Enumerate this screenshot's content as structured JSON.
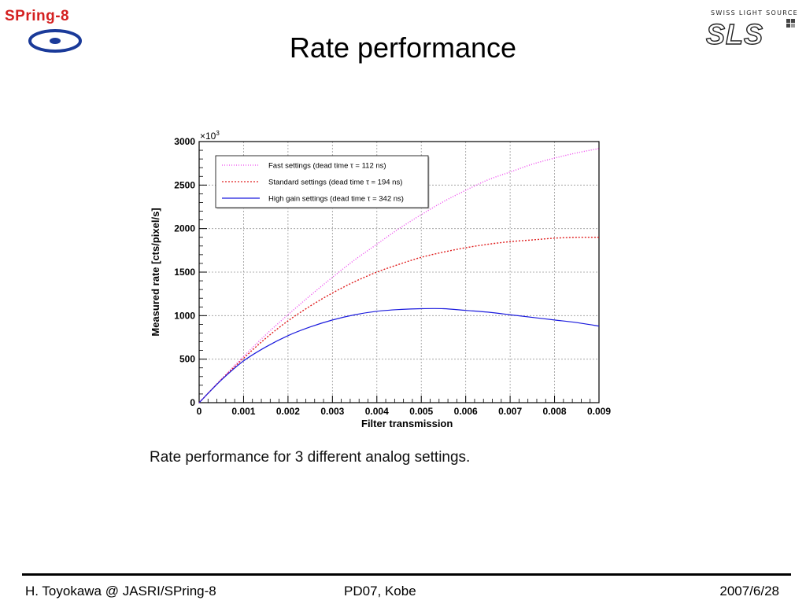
{
  "header": {
    "title": "Rate performance",
    "logo_left_text": "SPring-8",
    "logo_right_top": "SWISS LIGHT SOURCE",
    "logo_right_mark": "SLS"
  },
  "caption": "Rate performance for 3 different analog settings.",
  "footer": {
    "left": "H. Toyokawa @ JASRI/SPring-8",
    "center": "PD07, Kobe",
    "right": "2007/6/28"
  },
  "chart_data": {
    "type": "line",
    "title": "",
    "xlabel": "Filter transmission",
    "ylabel": "Measured rate [cts/pixel/s]",
    "y_multiplier": "×10",
    "y_multiplier_exp": "3",
    "xlim": [
      0,
      0.009
    ],
    "ylim": [
      0,
      3000
    ],
    "x_ticks": [
      0,
      0.001,
      0.002,
      0.003,
      0.004,
      0.005,
      0.006,
      0.007,
      0.008,
      0.009
    ],
    "x_tick_labels": [
      "0",
      "0.001",
      "0.002",
      "0.003",
      "0.004",
      "0.005",
      "0.006",
      "0.007",
      "0.008",
      "0.009"
    ],
    "y_ticks": [
      0,
      500,
      1000,
      1500,
      2000,
      2500,
      3000
    ],
    "y_tick_labels": [
      "0",
      "500",
      "1000",
      "1500",
      "2000",
      "2500",
      "3000"
    ],
    "grid": true,
    "legend_position": "top-left",
    "x": [
      0,
      0.0005,
      0.001,
      0.0015,
      0.002,
      0.0025,
      0.003,
      0.0035,
      0.004,
      0.0045,
      0.005,
      0.0055,
      0.006,
      0.0065,
      0.007,
      0.0075,
      0.008,
      0.0085,
      0.009
    ],
    "series": [
      {
        "name": "Fast settings (dead time τ = 112 ns)",
        "color": "#ee44ee",
        "dash": "1,2",
        "values": [
          0,
          270,
          530,
          780,
          1010,
          1230,
          1440,
          1640,
          1820,
          2000,
          2160,
          2310,
          2440,
          2560,
          2650,
          2740,
          2810,
          2870,
          2920
        ]
      },
      {
        "name": "Standard settings (dead time τ = 194 ns)",
        "color": "#e02020",
        "dash": "2,2",
        "values": [
          0,
          265,
          510,
          740,
          940,
          1110,
          1260,
          1390,
          1500,
          1590,
          1670,
          1730,
          1780,
          1820,
          1850,
          1870,
          1890,
          1900,
          1900
        ]
      },
      {
        "name": "High gain settings (dead time τ = 342 ns)",
        "color": "#1a1add",
        "dash": "",
        "values": [
          0,
          260,
          480,
          640,
          770,
          870,
          950,
          1010,
          1050,
          1070,
          1080,
          1080,
          1060,
          1040,
          1010,
          980,
          950,
          920,
          880
        ]
      }
    ]
  }
}
